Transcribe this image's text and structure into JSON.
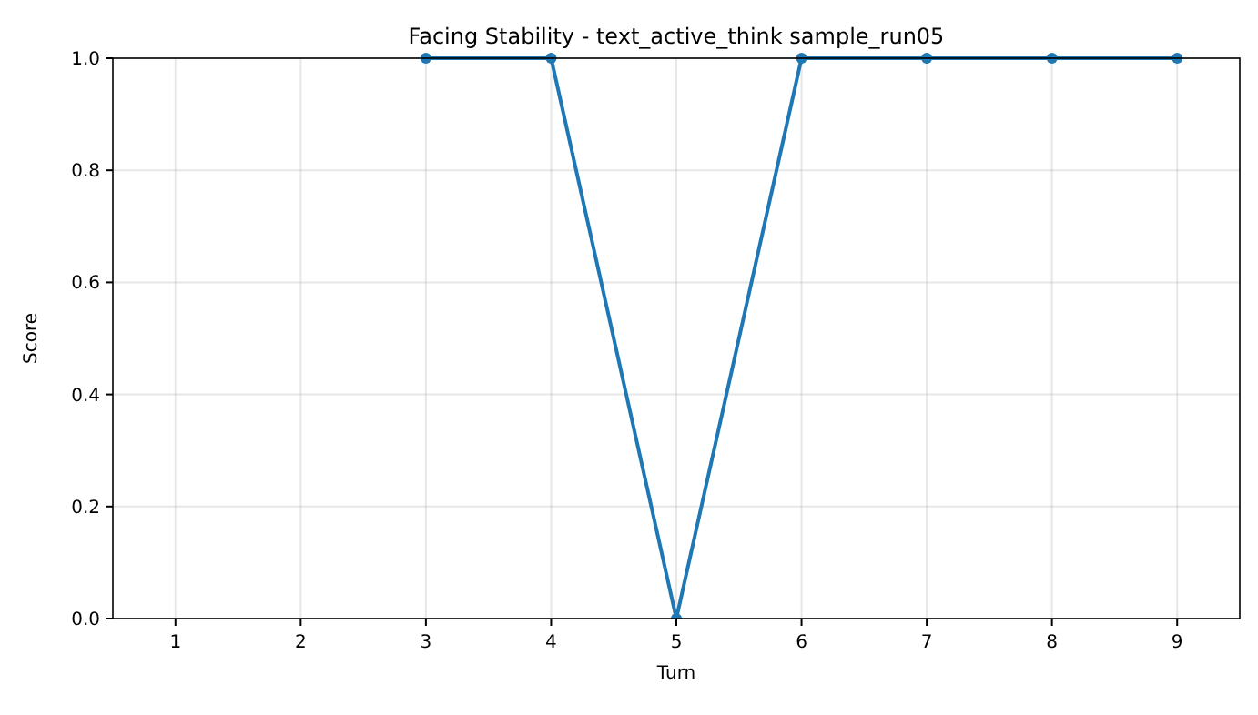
{
  "chart_data": {
    "type": "line",
    "title": "Facing Stability - text_active_think sample_run05",
    "xlabel": "Turn",
    "ylabel": "Score",
    "x": [
      3,
      4,
      5,
      6,
      7,
      8,
      9
    ],
    "series": [
      {
        "color": "#1f77b4",
        "values": [
          1,
          1,
          0,
          1,
          1,
          1,
          1
        ]
      }
    ],
    "xlim": [
      0.5,
      9.5
    ],
    "xticks": [
      1,
      2,
      3,
      4,
      5,
      6,
      7,
      8,
      9
    ],
    "ylim": [
      0,
      1
    ],
    "yticks": [
      {
        "value": 0,
        "label": "0.0"
      },
      {
        "value": 0.2,
        "label": "0.2"
      },
      {
        "value": 0.4,
        "label": "0.4"
      },
      {
        "value": 0.6,
        "label": "0.6"
      },
      {
        "value": 0.8,
        "label": "0.8"
      },
      {
        "value": 1,
        "label": "1.0"
      }
    ],
    "grid": true,
    "marker": "circle",
    "line_style": "solid"
  }
}
